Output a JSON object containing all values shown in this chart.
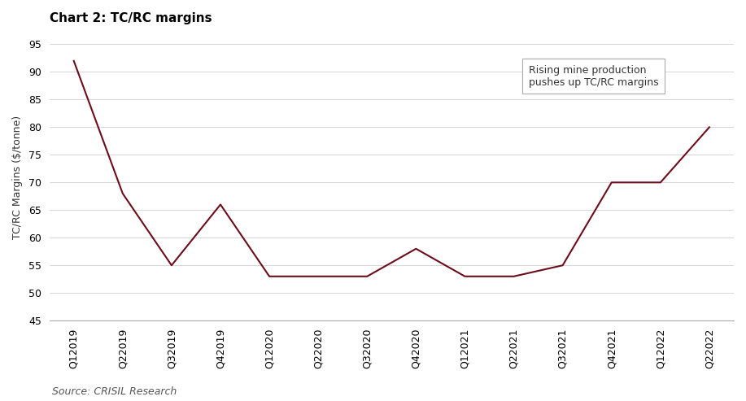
{
  "title": "Chart 2: TC/RC margins",
  "ylabel": "TC/RC Margins ($/tonne)",
  "source": "Source: CRISIL Research",
  "annotation": "Rising mine production\npushes up TC/RC margins",
  "categories": [
    "Q12019",
    "Q22019",
    "Q32019",
    "Q42019",
    "Q12020",
    "Q22020",
    "Q32020",
    "Q42020",
    "Q12021",
    "Q22021",
    "Q32021",
    "Q42021",
    "Q12022",
    "Q22022"
  ],
  "values": [
    92,
    68,
    55,
    66,
    53,
    53,
    53,
    58,
    53,
    53,
    55,
    70,
    70,
    80
  ],
  "line_color": "#6B0D1A",
  "ylim": [
    45,
    97
  ],
  "yticks": [
    45,
    50,
    55,
    60,
    65,
    70,
    75,
    80,
    85,
    90,
    95
  ],
  "bg_color": "#ffffff",
  "grid_color": "#d0d0d0",
  "title_fontsize": 11,
  "label_fontsize": 9,
  "tick_fontsize": 9,
  "source_fontsize": 9,
  "annotation_fontsize": 9
}
